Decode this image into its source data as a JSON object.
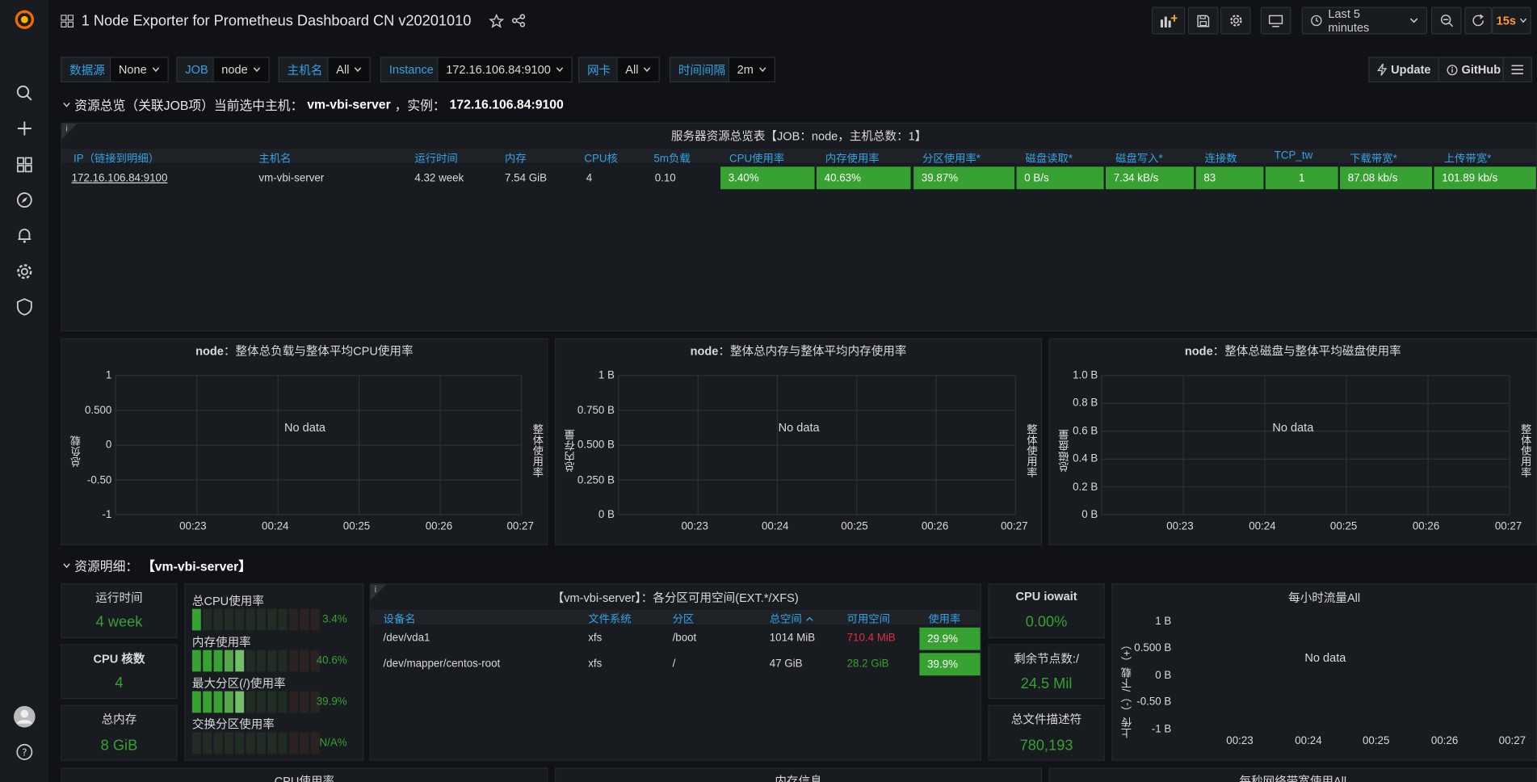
{
  "dashboard": {
    "title": "1 Node Exporter for Prometheus Dashboard CN v20201010",
    "time_range": "Last 5 minutes",
    "refresh": "15s"
  },
  "variables": [
    {
      "label": "数据源",
      "value": "None"
    },
    {
      "label": "JOB",
      "value": "node"
    },
    {
      "label": "主机名",
      "value": "All"
    },
    {
      "label": "Instance",
      "value": "172.16.106.84:9100"
    },
    {
      "label": "网卡",
      "value": "All"
    },
    {
      "label": "时间间隔",
      "value": "2m"
    }
  ],
  "links": {
    "update": "Update",
    "github": "GitHub"
  },
  "row1": {
    "prefix": "资源总览（关联JOB项）当前选中主机：",
    "host": "vm-vbi-server",
    "sep": "，实例：",
    "instance": "172.16.106.84:9100"
  },
  "summary": {
    "title": "服务器资源总览表【JOB：node，主机总数：1】",
    "headers": [
      "IP（链接到明细）",
      "主机名",
      "运行时间",
      "内存",
      "CPU核",
      "5m负载",
      "CPU使用率",
      "内存使用率",
      "分区使用率*",
      "磁盘读取*",
      "磁盘写入*",
      "连接数",
      "TCP_tw",
      "下载带宽*",
      "上传带宽*"
    ],
    "row": [
      "172.16.106.84:9100",
      "vm-vbi-server",
      "4.32 week",
      "7.54 GiB",
      "4",
      "0.10",
      "3.40%",
      "40.63%",
      "39.87%",
      "0 B/s",
      "7.34 kB/s",
      "83",
      "1",
      "87.08 kb/s",
      "101.89 kb/s"
    ]
  },
  "graphs": [
    {
      "host": "node",
      "title": "：整体总负载与整体平均CPU使用率",
      "yticks": [
        "1",
        "0.500",
        "0",
        "-0.50",
        "-1"
      ],
      "ylabel": "总负载",
      "y2label": "整体使用率",
      "no_data": "No data"
    },
    {
      "host": "node",
      "title": "：整体总内存与整体平均内存使用率",
      "yticks": [
        "1 B",
        "0.750 B",
        "0.500 B",
        "0.250 B",
        "0 B"
      ],
      "ylabel": "总内存量",
      "y2label": "整体使用率",
      "no_data": "No data"
    },
    {
      "host": "node",
      "title": "：整体总磁盘与整体平均磁盘使用率",
      "yticks": [
        "1.0 B",
        "0.8 B",
        "0.6 B",
        "0.4 B",
        "0.2 B",
        "0 B"
      ],
      "ylabel": "总磁盘量",
      "y2label": "整体使用率",
      "no_data": "No data"
    }
  ],
  "xticks": [
    "00:23",
    "00:24",
    "00:25",
    "00:26",
    "00:27"
  ],
  "row2": {
    "prefix": "资源明细：",
    "host": "【vm-vbi-server】"
  },
  "stats": {
    "uptime": {
      "title": "运行时间",
      "value": "4 week"
    },
    "cpu_cores": {
      "title": "CPU 核数",
      "value": "4"
    },
    "total_mem": {
      "title": "总内存",
      "value": "8 GiB"
    },
    "iowait": {
      "title": "CPU iowait",
      "value": "0.00%"
    },
    "inodes": {
      "title": "剩余节点数:/",
      "value": "24.5 Mil"
    },
    "fd": {
      "title": "总文件描述符",
      "value": "780,193"
    }
  },
  "gauges": [
    {
      "label": "总CPU使用率",
      "value": "3.4%",
      "level": 0.034
    },
    {
      "label": "内存使用率",
      "value": "40.6%",
      "level": 0.406
    },
    {
      "label": "最大分区(/)使用率",
      "value": "39.9%",
      "level": 0.399
    },
    {
      "label": "交换分区使用率",
      "value": "N/A%",
      "level": 0
    }
  ],
  "partitions": {
    "title": "【vm-vbi-server】：各分区可用空间(EXT.*/XFS)",
    "headers": [
      "设备名",
      "文件系统",
      "分区",
      "总空间",
      "可用空间",
      "使用率"
    ],
    "rows": [
      [
        "/dev/vda1",
        "xfs",
        "/boot",
        "1014 MiB",
        "710.4 MiB",
        "29.9%"
      ],
      [
        "/dev/mapper/centos-root",
        "xfs",
        "/",
        "47 GiB",
        "28.2 GiB",
        "39.9%"
      ]
    ]
  },
  "traffic": {
    "title": "每小时流量All",
    "yticks": [
      "1 B",
      "0.500 B",
      "0 B",
      "-0.50 B",
      "-1 B"
    ],
    "ylabel": "上传（-）/下载（+）",
    "no_data": "No data"
  },
  "bottom_titles": [
    "CPU使用率",
    "内存信息",
    "每秒网络带宽使用All"
  ]
}
